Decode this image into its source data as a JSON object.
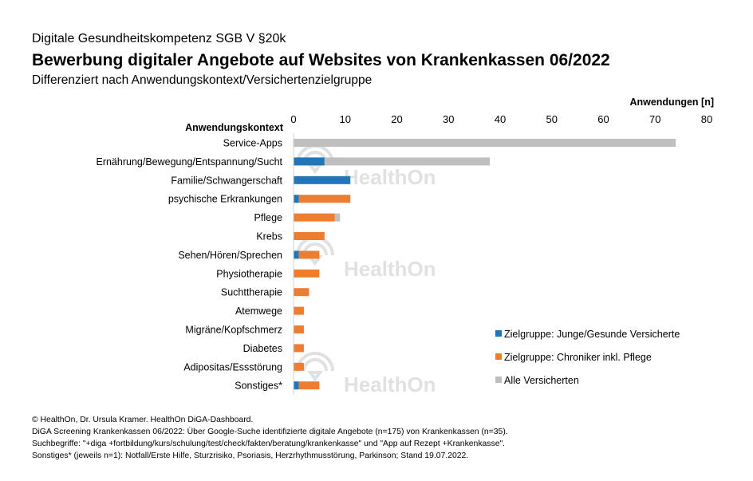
{
  "header": {
    "pre_title": "Digitale Gesundheitskompetenz SGB V §20k",
    "title": "Bewerbung digitaler Angebote auf Websites von Krankenkassen 06/2022",
    "subtitle": "Differenziert nach Anwendungskontext/Versichertenzielgruppe"
  },
  "chart_data": {
    "type": "bar",
    "orientation": "horizontal",
    "xlabel": "Anwendungen [n]",
    "ylabel": "Anwendungskontext",
    "xlim": [
      0,
      80
    ],
    "xticks": [
      0,
      10,
      20,
      30,
      40,
      50,
      60,
      70,
      80
    ],
    "grid": false,
    "legend_position": "bottom-right",
    "categories": [
      "Service-Apps",
      "Ernährung/Bewegung/Entspannung/Sucht",
      "Familie/Schwangerschaft",
      "psychische Erkrankungen",
      "Pflege",
      "Krebs",
      "Sehen/Hören/Sprechen",
      "Physiotherapie",
      "Suchttherapie",
      "Atemwege",
      "Migräne/Kopfschmerz",
      "Diabetes",
      "Adipositas/Essstörung",
      "Sonstiges*"
    ],
    "series": [
      {
        "name": "Zielgruppe: Junge/Gesunde Versicherte",
        "color": "#1f77b9",
        "values": [
          0,
          6,
          11,
          1,
          0,
          0,
          1,
          0,
          0,
          0,
          0,
          0,
          0,
          1
        ]
      },
      {
        "name": "Zielgruppe: Chroniker inkl. Pflege",
        "color": "#ed7d31",
        "values": [
          0,
          0,
          0,
          10,
          8,
          6,
          4,
          5,
          3,
          2,
          2,
          2,
          2,
          4
        ]
      },
      {
        "name": "Alle Versicherten",
        "color": "#bfbfbf",
        "values": [
          74,
          32,
          0,
          0,
          1,
          0,
          0,
          0,
          0,
          0,
          0,
          0,
          0,
          0
        ]
      }
    ]
  },
  "watermark": {
    "text": "HealthOn"
  },
  "footer": {
    "lines": [
      "© HealthOn, Dr. Ursula Kramer. HealthOn DiGA-Dashboard.",
      "DiGA Screening Krankenkassen 06/2022: Über Google-Suche identifizierte digitale Angebote (n=175) von Krankenkassen (n=35).",
      "Suchbegriffe: \"+diga +fortbildung/kurs/schulung/test/check/fakten/beratung/krankenkasse\" und \"App auf Rezept +Krankenkasse\".",
      "Sonstiges* (jeweils n=1): Notfall/Erste Hilfe, Sturzrisiko, Psoriasis, Herzrhythmusstörung, Parkinson;   Stand 19.07.2022."
    ]
  }
}
